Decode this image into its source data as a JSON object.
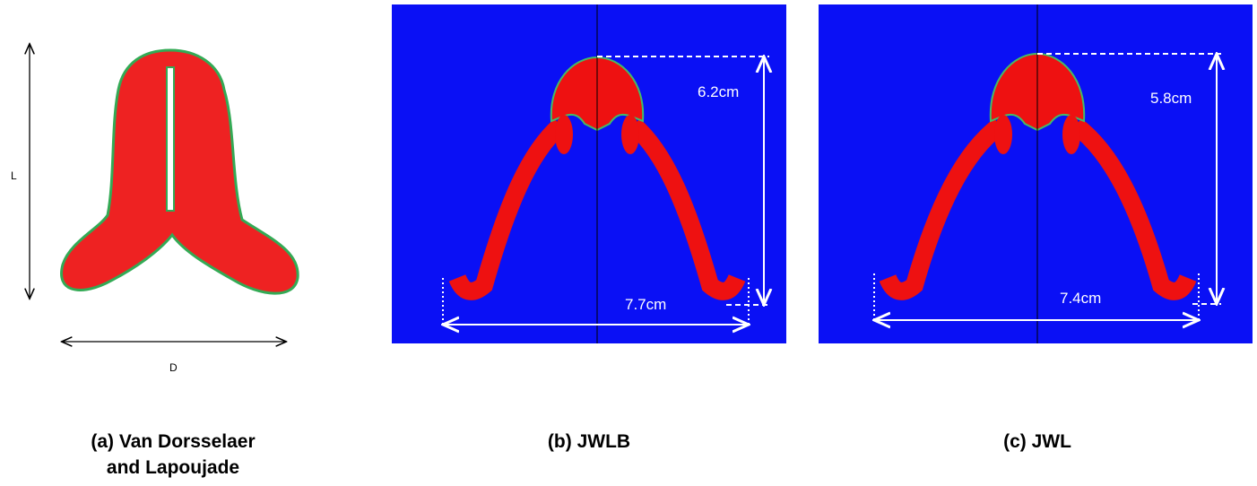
{
  "panels": [
    {
      "caption": [
        "(a) Van Dorsselaer",
        "and Lapoujade"
      ],
      "length_label": "L",
      "width_label": "D"
    },
    {
      "caption": [
        "(b) JWLB"
      ],
      "height_label": "6.2cm",
      "width_label": "7.7cm"
    },
    {
      "caption": [
        "(c) JWL"
      ],
      "height_label": "5.8cm",
      "width_label": "7.4cm"
    }
  ]
}
